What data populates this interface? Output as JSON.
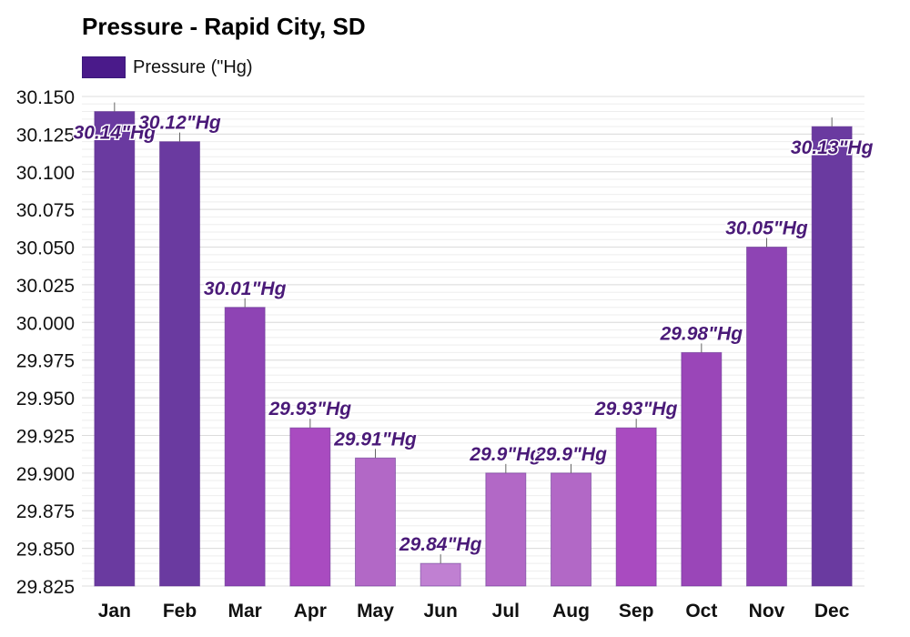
{
  "chart_data": {
    "type": "bar",
    "title": "Pressure - Rapid City, SD",
    "categories": [
      "Jan",
      "Feb",
      "Mar",
      "Apr",
      "May",
      "Jun",
      "Jul",
      "Aug",
      "Sep",
      "Oct",
      "Nov",
      "Dec"
    ],
    "series": [
      {
        "name": "Pressure (\"Hg)",
        "values": [
          30.14,
          30.12,
          30.01,
          29.93,
          29.91,
          29.84,
          29.9,
          29.9,
          29.93,
          29.98,
          30.05,
          30.13
        ],
        "labels": [
          "30.14\"Hg",
          "30.12\"Hg",
          "30.01\"Hg",
          "29.93\"Hg",
          "29.91\"Hg",
          "29.84\"Hg",
          "29.9\"Hg",
          "29.9\"Hg",
          "29.93\"Hg",
          "29.98\"Hg",
          "30.05\"Hg",
          "30.13\"Hg"
        ],
        "colors": [
          "#6a3aa0",
          "#6a3aa0",
          "#8e44b4",
          "#a94bc0",
          "#b268c6",
          "#c080d2",
          "#b268c6",
          "#b268c6",
          "#a94bc0",
          "#9a46b8",
          "#8e44b4",
          "#6a3aa0"
        ]
      }
    ],
    "ylim": [
      29.825,
      30.15
    ],
    "yticks": [
      "29.825",
      "29.850",
      "29.875",
      "29.900",
      "29.925",
      "29.950",
      "29.975",
      "30.000",
      "30.025",
      "30.050",
      "30.075",
      "30.100",
      "30.125",
      "30.150"
    ],
    "xlabel": "",
    "ylabel": "",
    "grid": true,
    "legend_position": "top-left",
    "legend_color": "#4a1a8a"
  }
}
